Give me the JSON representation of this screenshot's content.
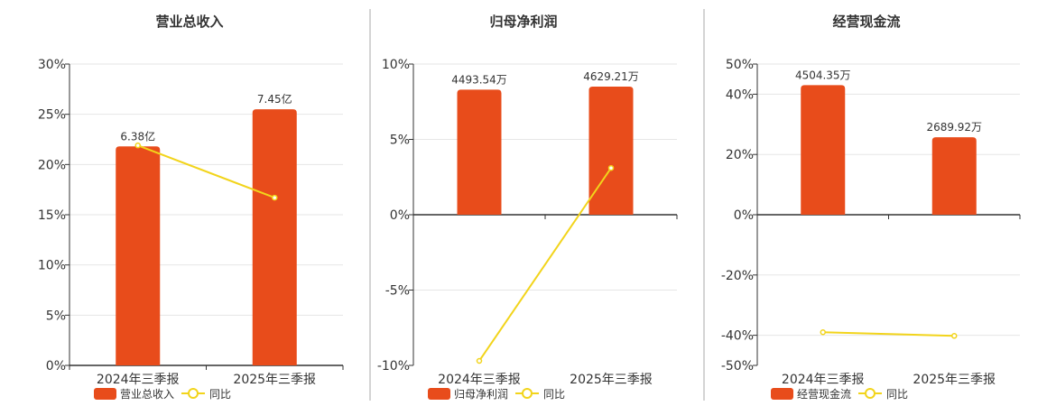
{
  "colors": {
    "bar": "#e84c1b",
    "line": "#f2d41b",
    "axis": "#333333",
    "grid": "#e6e6e6",
    "divider": "#aaaaaa",
    "text": "#333333"
  },
  "icons": {
    "legend_bar": "swatch-rect",
    "legend_line": "circle-line-marker"
  },
  "chart_data": [
    {
      "type": "bar",
      "title": "营业总收入",
      "categories": [
        "2024年三季报",
        "2025年三季报"
      ],
      "series": [
        {
          "name": "营业总收入",
          "type": "bar",
          "values": [
            21.8,
            25.5
          ],
          "labels": [
            "6.38亿",
            "7.45亿"
          ]
        },
        {
          "name": "同比",
          "type": "line",
          "values": [
            21.9,
            16.7
          ]
        }
      ],
      "ylim": [
        0,
        30
      ],
      "yticks": [
        0,
        5,
        10,
        15,
        20,
        25,
        30
      ],
      "ytick_labels": [
        "0%",
        "5%",
        "10%",
        "15%",
        "20%",
        "25%",
        "30%"
      ],
      "grid": true,
      "legend": "bottom"
    },
    {
      "type": "bar",
      "title": "归母净利润",
      "categories": [
        "2024年三季报",
        "2025年三季报"
      ],
      "series": [
        {
          "name": "归母净利润",
          "type": "bar",
          "values": [
            8.3,
            8.5
          ],
          "labels": [
            "4493.54万",
            "4629.21万"
          ]
        },
        {
          "name": "同比",
          "type": "line",
          "values": [
            -9.7,
            3.1
          ]
        }
      ],
      "ylim": [
        -10,
        10
      ],
      "yticks": [
        -10,
        -5,
        0,
        5,
        10
      ],
      "ytick_labels": [
        "-10%",
        "-5%",
        "0%",
        "5%",
        "10%"
      ],
      "grid": true,
      "legend": "bottom"
    },
    {
      "type": "bar",
      "title": "经营现金流",
      "categories": [
        "2024年三季报",
        "2025年三季报"
      ],
      "series": [
        {
          "name": "经营现金流",
          "type": "bar",
          "values": [
            43,
            25.7
          ],
          "labels": [
            "4504.35万",
            "2689.92万"
          ]
        },
        {
          "name": "同比",
          "type": "line",
          "values": [
            -39,
            -40.2
          ]
        }
      ],
      "ylim": [
        -50,
        50
      ],
      "yticks": [
        -50,
        -40,
        -20,
        0,
        20,
        40,
        50
      ],
      "ytick_labels": [
        "-50%",
        "-40%",
        "-20%",
        "0%",
        "20%",
        "40%",
        "50%"
      ],
      "grid": true,
      "legend": "bottom"
    }
  ]
}
